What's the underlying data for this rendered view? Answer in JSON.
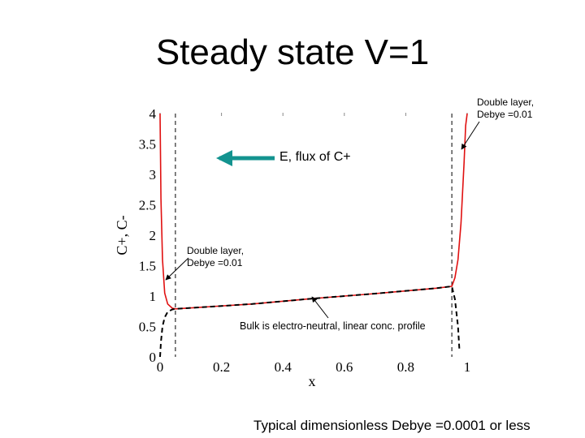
{
  "slide": {
    "title": "Steady state V=1",
    "footer": "Typical dimensionless Debye =0.0001 or less"
  },
  "annotations": {
    "dl_right_line1": "Double layer,",
    "dl_right_line2": "Debye =0.01",
    "dl_left_line1": "Double layer,",
    "dl_left_line2": "Debye =0.01",
    "flux": "E, flux of C+",
    "bulk": "Bulk is electro-neutral, linear conc. profile"
  },
  "colors": {
    "c_plus": "#e01010",
    "c_minus": "#000000",
    "arrow_flux": "#13938f"
  },
  "chart_data": {
    "type": "line",
    "xlabel": "x",
    "ylabel": "C+, C-",
    "xlim": [
      0,
      1
    ],
    "ylim": [
      0,
      4
    ],
    "x_ticks": [
      "0",
      "0.2",
      "0.4",
      "0.6",
      "0.8",
      "1"
    ],
    "y_ticks": [
      "0",
      "0.5",
      "1",
      "1.5",
      "2",
      "2.5",
      "3",
      "3.5",
      "4"
    ],
    "reference_lines_x": [
      0.05,
      0.95
    ],
    "series": [
      {
        "name": "C+",
        "style": "solid",
        "color": "#e01010",
        "x": [
          0,
          0.003,
          0.008,
          0.015,
          0.025,
          0.04,
          0.05,
          0.3,
          0.5,
          0.7,
          0.9,
          0.95,
          0.96,
          0.97,
          0.98,
          0.99,
          0.995,
          1.0
        ],
        "y": [
          4.0,
          2.6,
          1.6,
          1.05,
          0.87,
          0.8,
          0.79,
          0.87,
          0.96,
          1.04,
          1.13,
          1.16,
          1.3,
          1.6,
          2.2,
          3.2,
          3.8,
          4.0
        ]
      },
      {
        "name": "C-",
        "style": "dashed",
        "color": "#000000",
        "x": [
          0,
          0.003,
          0.008,
          0.015,
          0.025,
          0.04,
          0.05,
          0.3,
          0.5,
          0.7,
          0.9,
          0.95,
          0.96,
          0.97,
          0.975
        ],
        "y": [
          0.0,
          0.25,
          0.5,
          0.65,
          0.74,
          0.78,
          0.79,
          0.87,
          0.96,
          1.04,
          1.13,
          1.16,
          0.95,
          0.5,
          0.1
        ]
      }
    ]
  }
}
